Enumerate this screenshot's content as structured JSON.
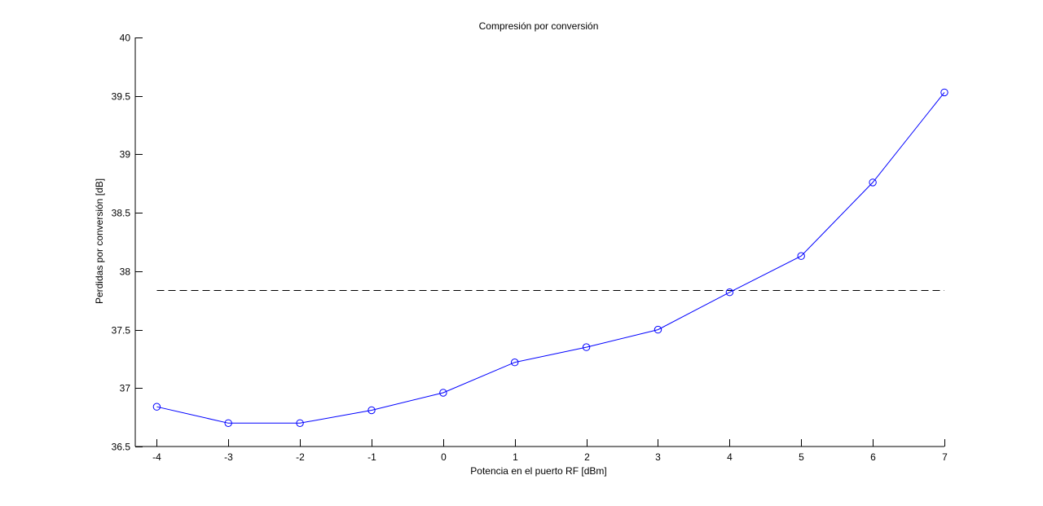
{
  "chart_data": {
    "type": "line",
    "title": "Compresión por conversión",
    "xlabel": "Potencia en el puerto RF [dBm]",
    "ylabel": "Perdidas por conversión [dB]",
    "xlim": [
      -4.3,
      7
    ],
    "ylim": [
      36.5,
      40
    ],
    "x_ticks": [
      -4,
      -3,
      -2,
      -1,
      0,
      1,
      2,
      3,
      4,
      5,
      6,
      7
    ],
    "x_tick_labels": [
      "-4",
      "-3",
      "-2",
      "-1",
      "0",
      "1",
      "2",
      "3",
      "4",
      "5",
      "6",
      "7"
    ],
    "y_ticks": [
      36.5,
      37,
      37.5,
      38,
      38.5,
      39,
      39.5,
      40
    ],
    "y_tick_labels": [
      "36.5",
      "37",
      "37.5",
      "38",
      "38.5",
      "39",
      "39.5",
      "40"
    ],
    "grid": false,
    "series": [
      {
        "style": "solid line with circle markers",
        "color": "#0000ff",
        "x": [
          -4,
          -3,
          -2,
          -1,
          0,
          1,
          2,
          3,
          4,
          5,
          6,
          7
        ],
        "y": [
          36.84,
          36.7,
          36.7,
          36.81,
          36.96,
          37.22,
          37.35,
          37.5,
          37.82,
          38.13,
          38.76,
          39.53
        ]
      }
    ],
    "reference_lines": [
      {
        "orientation": "horizontal",
        "style": "dashed",
        "color": "#000000",
        "y": 37.84,
        "x_from": -4,
        "x_to": 7
      }
    ]
  }
}
